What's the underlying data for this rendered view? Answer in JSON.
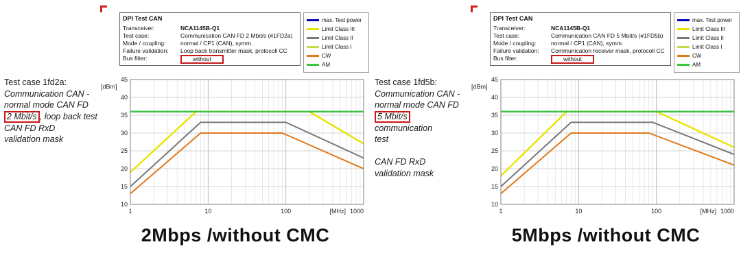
{
  "panels": [
    {
      "side_text": {
        "intro": "Test case 1fd2a:",
        "lines_before": [
          "Communication CAN -",
          "normal mode CAN FD"
        ],
        "boxed": "2 Mbit/s",
        "after_boxed": ", loop back test",
        "lines_after": [
          "CAN FD RxD",
          "validation mask"
        ]
      },
      "info": {
        "title": "DPI Test CAN",
        "rows": [
          {
            "label": "Transceiver:",
            "value": "NCA1145B-Q1",
            "bold": true
          },
          {
            "label": "Test case:",
            "value": "Communication CAN FD 2 Mbit/s (#1FD2a)"
          },
          {
            "label": "Mode / coupling:",
            "value": "normal / CP1 (CAN), symm."
          },
          {
            "label": "Failure validation:",
            "value": "Loop back transmitter mask, protocoll CC"
          },
          {
            "label": "Bus filter:",
            "value": "without",
            "boxed": true
          }
        ]
      },
      "title": "2Mbps /without CMC"
    },
    {
      "side_text": {
        "intro": "Test case 1fd5b:",
        "lines_before": [
          "Communication CAN -",
          "normal mode CAN FD"
        ],
        "boxed": "5 Mbit/s",
        "after_boxed": " communication",
        "lines_after": [
          "test",
          "",
          "CAN FD RxD",
          "validation mask"
        ]
      },
      "info": {
        "title": "DPI Test CAN",
        "rows": [
          {
            "label": "Transceiver:",
            "value": "NCA1145B-Q1",
            "bold": true
          },
          {
            "label": "Test case:",
            "value": "Communication CAN FD 5 Mbit/s (#1FD5b)"
          },
          {
            "label": "Mode / coupling:",
            "value": "normal / CP1 (CAN), symm."
          },
          {
            "label": "Failure validation:",
            "value": "Communication receiver mask, protocoll CC"
          },
          {
            "label": "Bus filter:",
            "value": "without",
            "boxed": true
          }
        ]
      },
      "title": "5Mbps /without CMC"
    }
  ],
  "chart_data": [
    {
      "type": "line",
      "title": "2Mbps /without CMC",
      "xlabel": "[MHz]",
      "ylabel": "[dBm]",
      "xscale": "log",
      "xlim": [
        1,
        1000
      ],
      "ylim": [
        10,
        45
      ],
      "xticks": [
        1,
        10,
        100,
        1000
      ],
      "yticks": [
        10,
        15,
        20,
        25,
        30,
        35,
        40,
        45
      ],
      "grid": true,
      "legend_position": "top-right-outside",
      "legend": [
        {
          "label": "max. Test power",
          "color": "#0000bb"
        },
        {
          "label": "Limit Class III",
          "color": "#e8e400"
        },
        {
          "label": "Limit Class II",
          "color": "#787878"
        },
        {
          "label": "Limit Class I",
          "color": "#c3d94e"
        },
        {
          "label": "CW",
          "color": "#e07818"
        },
        {
          "label": "AM",
          "color": "#3cc43c"
        }
      ],
      "series": [
        {
          "name": "max. Test power",
          "color": "#0000bb",
          "points": [
            [
              1,
              36
            ],
            [
              1000,
              36
            ]
          ]
        },
        {
          "name": "Limit Class III",
          "color": "#e8e400",
          "width": 2.4,
          "points": [
            [
              1,
              19
            ],
            [
              7,
              36
            ],
            [
              200,
              36
            ],
            [
              1000,
              27
            ]
          ]
        },
        {
          "name": "Limit Class II",
          "color": "#787878",
          "points": [
            [
              1,
              15
            ],
            [
              8,
              33
            ],
            [
              100,
              33
            ],
            [
              1000,
              23
            ]
          ]
        },
        {
          "name": "CW",
          "color": "#e07818",
          "points": [
            [
              1,
              13
            ],
            [
              8,
              30
            ],
            [
              90,
              30
            ],
            [
              1000,
              20
            ]
          ]
        },
        {
          "name": "AM",
          "color": "#3cc43c",
          "width": 2.4,
          "points": [
            [
              1,
              36
            ],
            [
              1000,
              36
            ]
          ]
        }
      ]
    },
    {
      "type": "line",
      "title": "5Mbps /without CMC",
      "xlabel": "[MHz]",
      "ylabel": "[dBm]",
      "xscale": "log",
      "xlim": [
        1,
        1000
      ],
      "ylim": [
        10,
        45
      ],
      "xticks": [
        1,
        10,
        100,
        1000
      ],
      "yticks": [
        10,
        15,
        20,
        25,
        30,
        35,
        40,
        45
      ],
      "grid": true,
      "legend_position": "top-right-outside",
      "legend": [
        {
          "label": "max. Test power",
          "color": "#0000bb"
        },
        {
          "label": "Limit Class III",
          "color": "#e8e400"
        },
        {
          "label": "Limit Class II",
          "color": "#787878"
        },
        {
          "label": "Limit Class I",
          "color": "#c3d94e"
        },
        {
          "label": "CW",
          "color": "#e07818"
        },
        {
          "label": "AM",
          "color": "#3cc43c"
        }
      ],
      "series": [
        {
          "name": "max. Test power",
          "color": "#0000bb",
          "points": [
            [
              1,
              36
            ],
            [
              1000,
              36
            ]
          ]
        },
        {
          "name": "Limit Class III",
          "color": "#e8e400",
          "width": 2.4,
          "points": [
            [
              1,
              18
            ],
            [
              7,
              36
            ],
            [
              100,
              36
            ],
            [
              1000,
              26
            ]
          ]
        },
        {
          "name": "Limit Class II",
          "color": "#787878",
          "points": [
            [
              1,
              15
            ],
            [
              8,
              33
            ],
            [
              90,
              33
            ],
            [
              1000,
              24
            ]
          ]
        },
        {
          "name": "CW",
          "color": "#e07818",
          "points": [
            [
              1,
              13
            ],
            [
              8,
              30
            ],
            [
              80,
              30
            ],
            [
              1000,
              21
            ]
          ]
        },
        {
          "name": "AM",
          "color": "#3cc43c",
          "width": 2.4,
          "points": [
            [
              1,
              36
            ],
            [
              1000,
              36
            ]
          ]
        }
      ]
    }
  ]
}
